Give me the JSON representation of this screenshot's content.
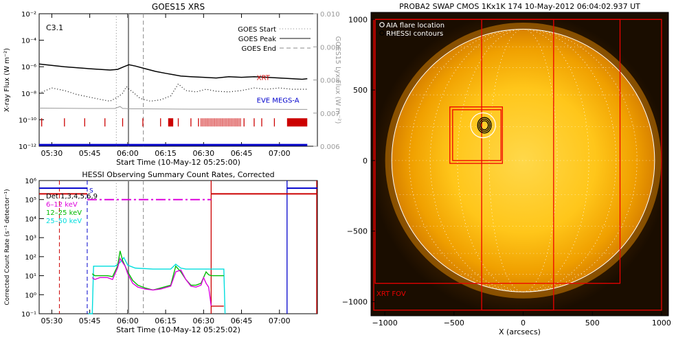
{
  "colors": {
    "background": "#ffffff",
    "axis": "#000000",
    "xrt": "#cc0000",
    "eve": "#0000cc",
    "goes_flux": "#000000",
    "lya": "#999999",
    "det": "#000000",
    "b6_12": "#dd00dd",
    "b12_25": "#00bb00",
    "b25_50": "#00dddd",
    "sun_core": "#ffc61a",
    "sun_edge": "#d98300",
    "sun_bg": "#1a0d00",
    "box": "#ee0000",
    "limb": "#ffffff"
  },
  "chart_data": [
    {
      "id": "goes",
      "type": "line",
      "title": "GOES15 XRS",
      "xlabel": "Start Time (10-May-12 05:25:00)",
      "ylabel": "X-ray Flux (W m⁻²)",
      "y2label": "GOES15 Lyx Flux (W m⁻²)",
      "xlim": [
        0,
        110
      ],
      "ylim": [
        -12,
        -2
      ],
      "y2lim": [
        0.006,
        0.01
      ],
      "x_ticks": [
        {
          "v": 5,
          "label": "05:30"
        },
        {
          "v": 20,
          "label": "05:45"
        },
        {
          "v": 35,
          "label": "06:00"
        },
        {
          "v": 50,
          "label": "06:15"
        },
        {
          "v": 65,
          "label": "06:30"
        },
        {
          "v": 80,
          "label": "06:45"
        },
        {
          "v": 95,
          "label": "07:00"
        }
      ],
      "y_ticks": [
        {
          "v": -2,
          "label": "10⁻²"
        },
        {
          "v": -4,
          "label": "10⁻⁴"
        },
        {
          "v": -6,
          "label": "10⁻⁶"
        },
        {
          "v": -8,
          "label": "10⁻⁸"
        },
        {
          "v": -10,
          "label": "10⁻¹⁰"
        },
        {
          "v": -12,
          "label": "10⁻¹²"
        }
      ],
      "y2_ticks": [
        {
          "v": 0.01,
          "label": "0.010"
        },
        {
          "v": 0.009,
          "label": "0.009"
        },
        {
          "v": 0.008,
          "label": "0.008"
        },
        {
          "v": 0.007,
          "label": "0.007"
        },
        {
          "v": 0.006,
          "label": "0.006"
        }
      ],
      "class_label": "C3.1",
      "legend": [
        {
          "label": "GOES Start",
          "dash": "dot"
        },
        {
          "label": "GOES Peak",
          "dash": "solid"
        },
        {
          "label": "GOES End",
          "dash": "dash"
        }
      ],
      "markers": {
        "start": 30.5,
        "peak": 35.3,
        "end": 41.2
      },
      "series_long": {
        "name": "GOES long",
        "x": [
          0,
          10,
          20,
          28,
          31,
          33.5,
          35.5,
          38,
          42,
          46,
          50,
          53,
          56,
          60,
          65,
          70,
          75,
          80,
          85,
          90,
          95,
          100,
          104,
          106
        ],
        "y": [
          -5.8,
          -6.0,
          -6.15,
          -6.25,
          -6.2,
          -6.0,
          -5.85,
          -5.95,
          -6.15,
          -6.35,
          -6.5,
          -6.6,
          -6.7,
          -6.75,
          -6.8,
          -6.85,
          -6.75,
          -6.8,
          -6.75,
          -6.8,
          -6.85,
          -6.9,
          -6.95,
          -6.9
        ]
      },
      "series_short": {
        "name": "GOES short",
        "x": [
          0,
          5,
          10,
          15,
          20,
          25,
          28,
          31,
          33,
          34.5,
          35.5,
          37,
          40,
          44,
          48,
          52,
          55,
          58,
          62,
          66,
          70,
          75,
          80,
          85,
          90,
          95,
          100,
          106
        ],
        "y": [
          -8.0,
          -7.6,
          -7.8,
          -8.1,
          -8.3,
          -8.5,
          -8.6,
          -8.3,
          -8.0,
          -7.5,
          -7.7,
          -7.9,
          -8.4,
          -8.6,
          -8.5,
          -8.2,
          -7.3,
          -7.8,
          -7.9,
          -7.7,
          -7.85,
          -7.9,
          -7.8,
          -7.6,
          -7.7,
          -7.6,
          -7.7,
          -7.7
        ]
      },
      "series_lya": {
        "name": "Lyman-alpha",
        "x": [
          0,
          20,
          30,
          32,
          33,
          34,
          36,
          40,
          60,
          80,
          100,
          106
        ],
        "y": [
          0.00715,
          0.00714,
          0.00714,
          0.0072,
          0.00714,
          0.00714,
          0.00713,
          0.00713,
          0.00712,
          0.00712,
          0.00711,
          0.00711
        ]
      },
      "series_eve": {
        "name": "EVE baseline",
        "x": [
          0,
          106
        ],
        "y": [
          -11.9,
          -11.9
        ]
      },
      "tick_marks_x": [
        1,
        10,
        18,
        26,
        33,
        41,
        48,
        55,
        60,
        63,
        81,
        85,
        88,
        93
      ],
      "tick_block_start": 64,
      "tick_block_end": 80,
      "solid_blocks": [
        [
          51,
          53
        ],
        [
          98,
          106
        ]
      ],
      "tick_marks_y": -10.2,
      "text_labels": [
        {
          "label": "XRT"
        },
        {
          "label": "EVE MEGS-A"
        }
      ]
    },
    {
      "id": "hessi",
      "type": "line",
      "title": "HESSI Observing Summary Count Rates, Corrected",
      "xlabel": "Start Time (10-May-12 05:25:02)",
      "ylabel": "Corrected Count Rate (s⁻¹ detector⁻¹)",
      "xlim": [
        0,
        110
      ],
      "ylim": [
        -1,
        6
      ],
      "x_ticks": [
        {
          "v": 5,
          "label": "05:30"
        },
        {
          "v": 20,
          "label": "05:45"
        },
        {
          "v": 35,
          "label": "06:00"
        },
        {
          "v": 50,
          "label": "06:15"
        },
        {
          "v": 65,
          "label": "06:30"
        },
        {
          "v": 80,
          "label": "06:45"
        },
        {
          "v": 95,
          "label": "07:00"
        }
      ],
      "y_ticks": [
        {
          "v": 6,
          "label": "10⁶"
        },
        {
          "v": 5,
          "label": "10⁵"
        },
        {
          "v": 4,
          "label": "10⁴"
        },
        {
          "v": 3,
          "label": "10³"
        },
        {
          "v": 2,
          "label": "10²"
        },
        {
          "v": 1,
          "label": "10¹"
        },
        {
          "v": 0,
          "label": "10⁰"
        },
        {
          "v": -1,
          "label": "10⁻¹"
        }
      ],
      "legend": [
        {
          "label": "Det 1,3,4,5,6,9",
          "key": "det"
        },
        {
          "label": "6–12 keV",
          "key": "b6_12"
        },
        {
          "label": "12–25 keV",
          "key": "b12_25"
        },
        {
          "label": "25–50 keV",
          "key": "b25_50"
        }
      ],
      "attenuator_label": "S",
      "markers": {
        "start": 30.5,
        "peak": 35.3,
        "end": 41.2
      },
      "red_dashed_x": 8,
      "blue_dashed_x": 19,
      "blue_solid_x": 98,
      "red_solid_x": 68,
      "flag_blue": [
        {
          "x0": 0,
          "x1": 19,
          "y": 5.6
        },
        {
          "x0": 98,
          "x1": 110,
          "y": 5.6
        }
      ],
      "flag_red": [
        {
          "x0": 0,
          "x1": 19,
          "y": 5.3
        },
        {
          "x0": 68,
          "x1": 110,
          "y": 5.3
        }
      ],
      "flag_magenta": {
        "x0": 19,
        "x1": 68,
        "y": 5.0
      },
      "band_6_12": {
        "x": [
          21,
          22,
          24,
          27,
          29,
          31,
          32,
          33,
          34,
          35,
          37,
          39,
          42,
          45,
          48,
          52,
          54,
          56,
          58,
          60,
          62,
          64,
          65,
          66,
          67,
          68
        ],
        "y": [
          0.9,
          0.8,
          0.9,
          0.9,
          0.8,
          1.4,
          1.9,
          1.7,
          1.5,
          1.1,
          0.6,
          0.4,
          0.3,
          0.25,
          0.3,
          0.45,
          1.2,
          1.3,
          0.8,
          0.45,
          0.4,
          0.5,
          0.9,
          0.6,
          0.4,
          -0.6
        ]
      },
      "band_12_25": {
        "x": [
          21,
          22,
          24,
          27,
          29,
          31,
          32,
          33,
          34,
          35,
          37,
          39,
          42,
          45,
          48,
          52,
          54,
          56,
          58,
          60,
          62,
          64,
          65,
          66,
          67,
          68,
          70,
          73
        ],
        "y": [
          1.1,
          1.0,
          1.0,
          1.0,
          0.95,
          1.5,
          2.3,
          1.8,
          1.5,
          1.2,
          0.75,
          0.5,
          0.35,
          0.25,
          0.35,
          0.5,
          1.5,
          1.2,
          0.8,
          0.5,
          0.5,
          0.6,
          0.9,
          1.2,
          1.05,
          1.0,
          1.0,
          1.0
        ]
      },
      "band_25_50": {
        "x": [
          19.5,
          21,
          21.5,
          25,
          30,
          32,
          33.5,
          35,
          38,
          45,
          52,
          54,
          56,
          58,
          62,
          66,
          69,
          72,
          73,
          73.5
        ],
        "y": [
          -1,
          -1,
          1.5,
          1.5,
          1.5,
          1.7,
          1.95,
          1.55,
          1.4,
          1.35,
          1.35,
          1.6,
          1.4,
          1.35,
          1.35,
          1.35,
          1.35,
          1.35,
          1.35,
          -1
        ]
      },
      "det_step": {
        "x": [
          68,
          69,
          72,
          73
        ],
        "y": [
          -0.6,
          -0.6,
          -0.6,
          -0.6
        ]
      }
    },
    {
      "id": "swap",
      "type": "image",
      "title": "PROBA2 SWAP CMOS 1Kx1K 174 10-May-2012 06:04:02.937 UT",
      "xlabel": "X (arcsecs)",
      "xlim": [
        -1100,
        1050
      ],
      "ylim": [
        -1100,
        1050
      ],
      "x_ticks": [
        {
          "v": -1000,
          "label": "−1000"
        },
        {
          "v": -500,
          "label": "−500"
        },
        {
          "v": 0,
          "label": "0"
        },
        {
          "v": 500,
          "label": "500"
        },
        {
          "v": 1000,
          "label": "1000"
        }
      ],
      "y_ticks": [
        {
          "v": 1000,
          "label": "1000"
        },
        {
          "v": 500,
          "label": "500"
        },
        {
          "v": 0,
          "label": "0"
        },
        {
          "v": -500,
          "label": "−500"
        },
        {
          "v": -1000,
          "label": "−1000"
        }
      ],
      "sun_radius": 950,
      "legend": [
        {
          "label": "AIA flare location"
        },
        {
          "label": "RHESSI contours"
        }
      ],
      "boxes": [
        [
          -1080,
          -1060,
          1000,
          1000
        ],
        [
          -1070,
          -870,
          700,
          1000
        ],
        [
          -300,
          -1060,
          220,
          1000
        ],
        [
          -530,
          -20,
          -150,
          380
        ],
        [
          -510,
          0,
          -160,
          360
        ]
      ],
      "flare": {
        "x": -290,
        "y": 250
      },
      "contour_radii": [
        40,
        55,
        70
      ],
      "xrt_label": "XRT FOV"
    }
  ]
}
